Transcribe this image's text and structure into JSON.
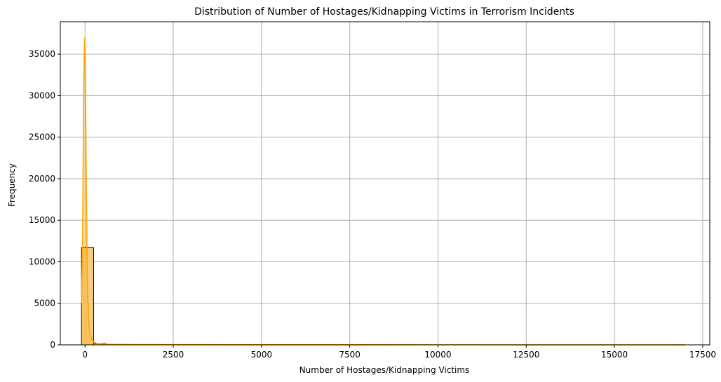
{
  "chart_data": {
    "type": "bar",
    "subtype": "histogram-with-kde",
    "title": "Distribution of Number of Hostages/Kidnapping Victims in Terrorism Incidents",
    "xlabel": "Number of Hostages/Kidnapping Victims",
    "ylabel": "Frequency",
    "xlim": [
      -700,
      17700
    ],
    "ylim": [
      0,
      38900
    ],
    "xticks": [
      0,
      2500,
      5000,
      7500,
      10000,
      12500,
      15000,
      17500
    ],
    "yticks": [
      0,
      5000,
      10000,
      15000,
      20000,
      25000,
      30000,
      35000
    ],
    "grid": true,
    "bin_edges": [
      -99,
      243,
      585,
      927,
      1269,
      1611,
      1953,
      2295,
      2637,
      2979,
      3321,
      3663,
      4005,
      4347,
      4689,
      5031,
      5373,
      5715,
      6057,
      6399,
      6741,
      7083,
      7425,
      7767,
      8109,
      8451,
      8793,
      9135,
      9477,
      9819,
      10161,
      10503,
      10845,
      11187,
      11529,
      11871,
      12213,
      12555,
      12897,
      13239,
      13581,
      13923,
      14265,
      14607,
      14949,
      15291,
      15633,
      15975,
      16317,
      16659,
      17001
    ],
    "values": [
      11700,
      150,
      60,
      35,
      20,
      15,
      10,
      8,
      6,
      5,
      4,
      3,
      3,
      2,
      2,
      2,
      1,
      1,
      1,
      1,
      1,
      1,
      1,
      1,
      0,
      1,
      0,
      1,
      0,
      0,
      0,
      0,
      0,
      0,
      0,
      0,
      0,
      0,
      0,
      0,
      0,
      0,
      0,
      0,
      0,
      0,
      0,
      0,
      0,
      1
    ],
    "kde": {
      "x": [
        -99,
        -70,
        -45,
        -25,
        -10,
        0,
        10,
        20,
        35,
        55,
        80,
        110,
        150,
        200,
        260,
        350,
        500,
        800,
        1500,
        3000,
        6000,
        10000,
        14000,
        17001
      ],
      "y": [
        5000,
        12000,
        26000,
        34500,
        37000,
        36500,
        33000,
        28000,
        20000,
        11000,
        5500,
        2500,
        1200,
        600,
        300,
        150,
        90,
        60,
        40,
        25,
        15,
        10,
        8,
        5
      ]
    },
    "colors": {
      "bar_fill": "#f5c56c",
      "bar_edge": "#000000",
      "kde_line": "#ffa500",
      "grid": "#b0b0b0"
    }
  }
}
